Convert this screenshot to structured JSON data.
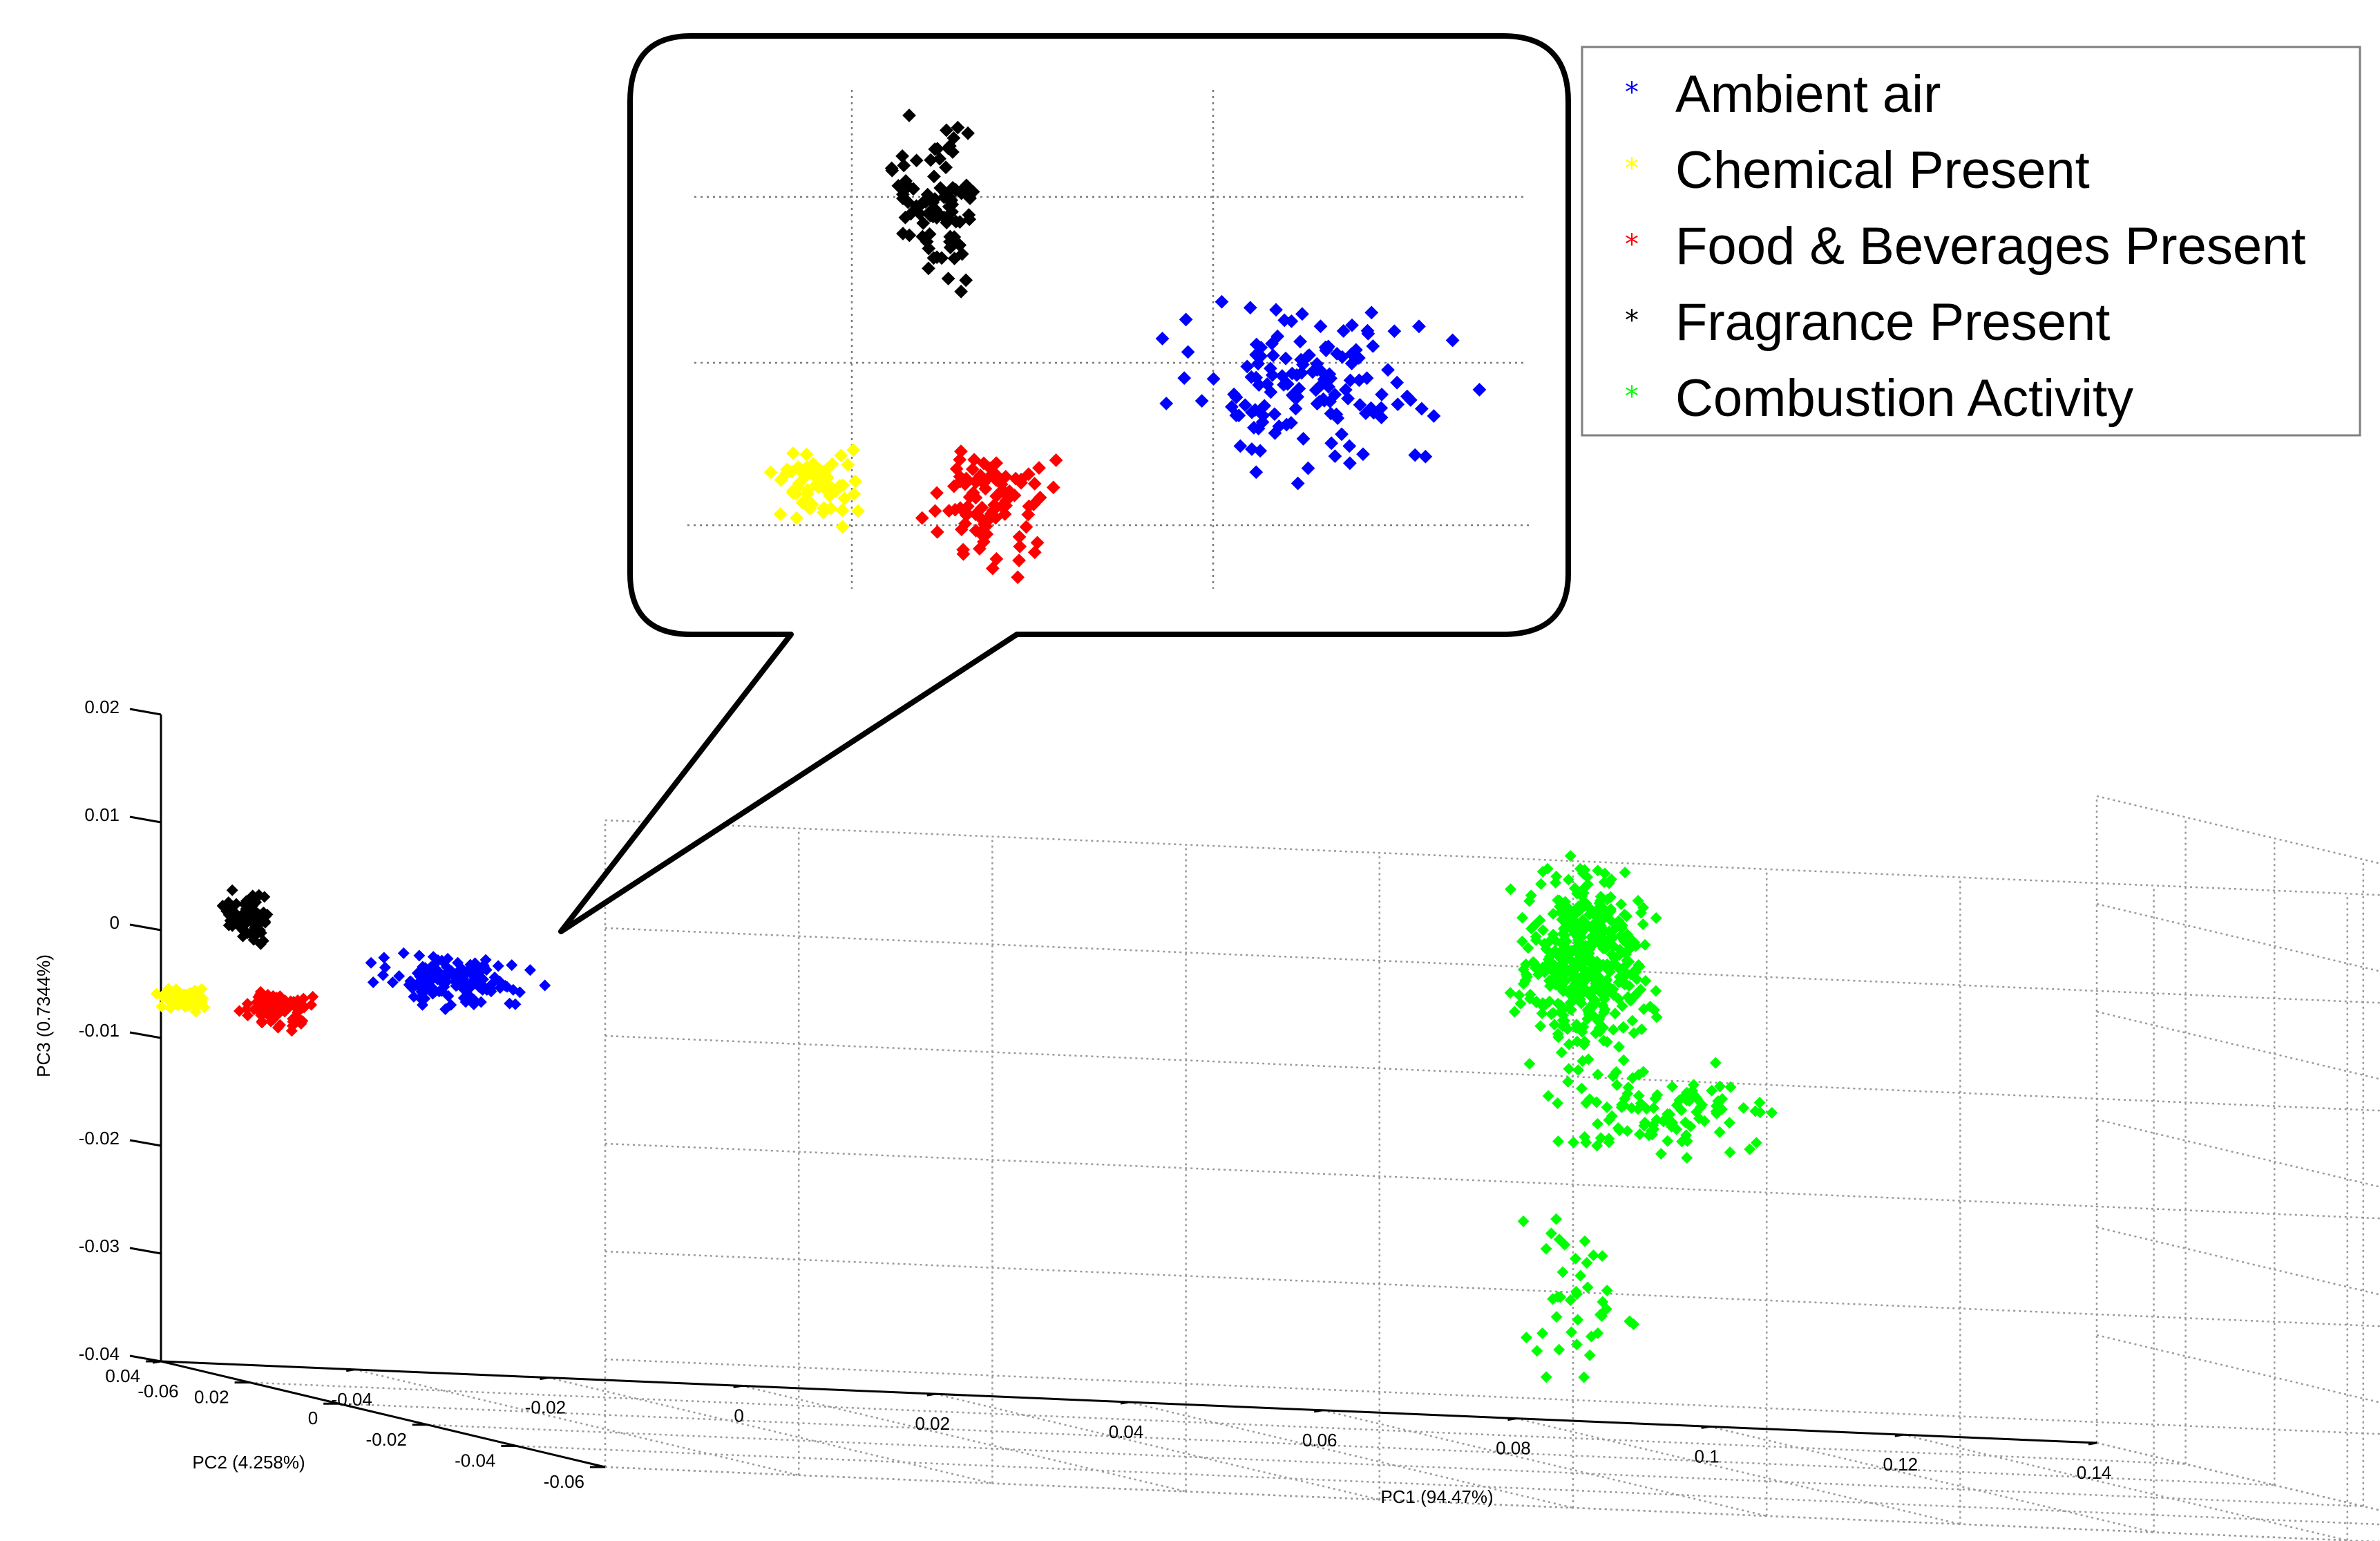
{
  "chart_data": {
    "type": "scatter",
    "projection": "3d",
    "grid": true,
    "legend_position": "top-right",
    "zoom_inset": true,
    "axes": {
      "x": {
        "label": "PC1 (94.47%)",
        "range": [
          -0.06,
          0.14
        ],
        "ticks": [
          -0.06,
          -0.04,
          -0.02,
          0,
          0.02,
          0.04,
          0.06,
          0.08,
          0.1,
          0.12,
          0.14
        ],
        "tick_labels": [
          "-0.06",
          "-0.04",
          "-0.02",
          "0",
          "0.02",
          "0.04",
          "0.06",
          "0.08",
          "0.1",
          "0.12",
          "0.14"
        ]
      },
      "y": {
        "label": "PC2 (4.258%)",
        "range": [
          -0.06,
          0.04
        ],
        "ticks": [
          0.04,
          0.02,
          0,
          -0.02,
          -0.04,
          -0.06
        ],
        "tick_labels": [
          "0.04",
          "0.02",
          "0",
          "-0.02",
          "-0.04",
          "-0.06"
        ]
      },
      "z": {
        "label": "PC3 (0.7344%)",
        "range": [
          -0.04,
          0.02
        ],
        "ticks": [
          0.02,
          0.01,
          0,
          -0.01,
          -0.02,
          -0.03,
          -0.04
        ],
        "tick_labels": [
          "0.02",
          "0.01",
          "0",
          "-0.01",
          "-0.02",
          "-0.03",
          "-0.04"
        ]
      }
    },
    "series": [
      {
        "name": "Ambient air",
        "color": "#0000ff",
        "marker": "*",
        "clusters": [
          {
            "center": [
              -0.03,
              -0.0035
            ],
            "spread": [
              0.006,
              0.0016
            ],
            "count": 140
          }
        ]
      },
      {
        "name": "Chemical Present",
        "color": "#ffff00",
        "marker": "*",
        "clusters": [
          {
            "center": [
              -0.058,
              -0.0062
            ],
            "spread": [
              0.0018,
              0.0008
            ],
            "count": 60
          }
        ]
      },
      {
        "name": "Food & Beverages Present",
        "color": "#ff0000",
        "marker": "*",
        "clusters": [
          {
            "center": [
              -0.048,
              -0.0068
            ],
            "spread": [
              0.0025,
              0.0014
            ],
            "count": 90
          }
        ]
      },
      {
        "name": "Fragrance Present",
        "color": "#000000",
        "marker": "*",
        "clusters": [
          {
            "center": [
              -0.051,
              0.0015
            ],
            "spread": [
              0.0018,
              0.0016
            ],
            "count": 90
          }
        ]
      },
      {
        "name": "Combustion Activity",
        "color": "#00ff00",
        "marker": "*",
        "clusters": [
          {
            "center": [
              0.087,
              0.0025
            ],
            "spread": [
              0.005,
              0.0065
            ],
            "count": 420
          },
          {
            "center": [
              0.095,
              -0.011
            ],
            "spread": [
              0.009,
              0.0035
            ],
            "count": 110
          },
          {
            "center": [
              0.087,
              -0.028
            ],
            "spread": [
              0.005,
              0.007
            ],
            "count": 40
          }
        ]
      }
    ]
  }
}
